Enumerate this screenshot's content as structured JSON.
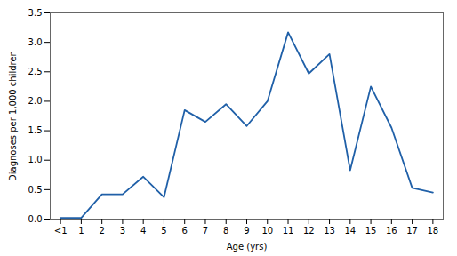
{
  "chart_data": {
    "type": "line",
    "xlabel": "Age (yrs)",
    "ylabel": "Diagnoses per 1,000 children",
    "x": [
      0,
      1,
      2,
      3,
      4,
      5,
      6,
      7,
      8,
      9,
      10,
      11,
      12,
      13,
      14,
      15,
      16,
      17,
      18
    ],
    "values": [
      0.02,
      0.02,
      0.42,
      0.42,
      0.72,
      0.37,
      1.85,
      1.65,
      1.95,
      1.58,
      2.0,
      3.17,
      2.47,
      2.8,
      0.83,
      2.25,
      1.55,
      0.53,
      0.45
    ],
    "color": "#2060a8",
    "xlim": [
      -0.5,
      18.5
    ],
    "xticks": [
      {
        "value": 0,
        "label": "<1"
      },
      1,
      2,
      3,
      4,
      5,
      6,
      7,
      8,
      9,
      10,
      11,
      12,
      13,
      14,
      15,
      16,
      17,
      18
    ],
    "ylim": [
      0,
      3.5
    ],
    "yticks": [
      {
        "value": 0,
        "label": "0.0"
      },
      0.5,
      {
        "value": 1,
        "label": "1.0"
      },
      1.5,
      {
        "value": 2,
        "label": "2.0"
      },
      2.5,
      {
        "value": 3,
        "label": "3.0"
      },
      3.5
    ],
    "grid": false
  }
}
